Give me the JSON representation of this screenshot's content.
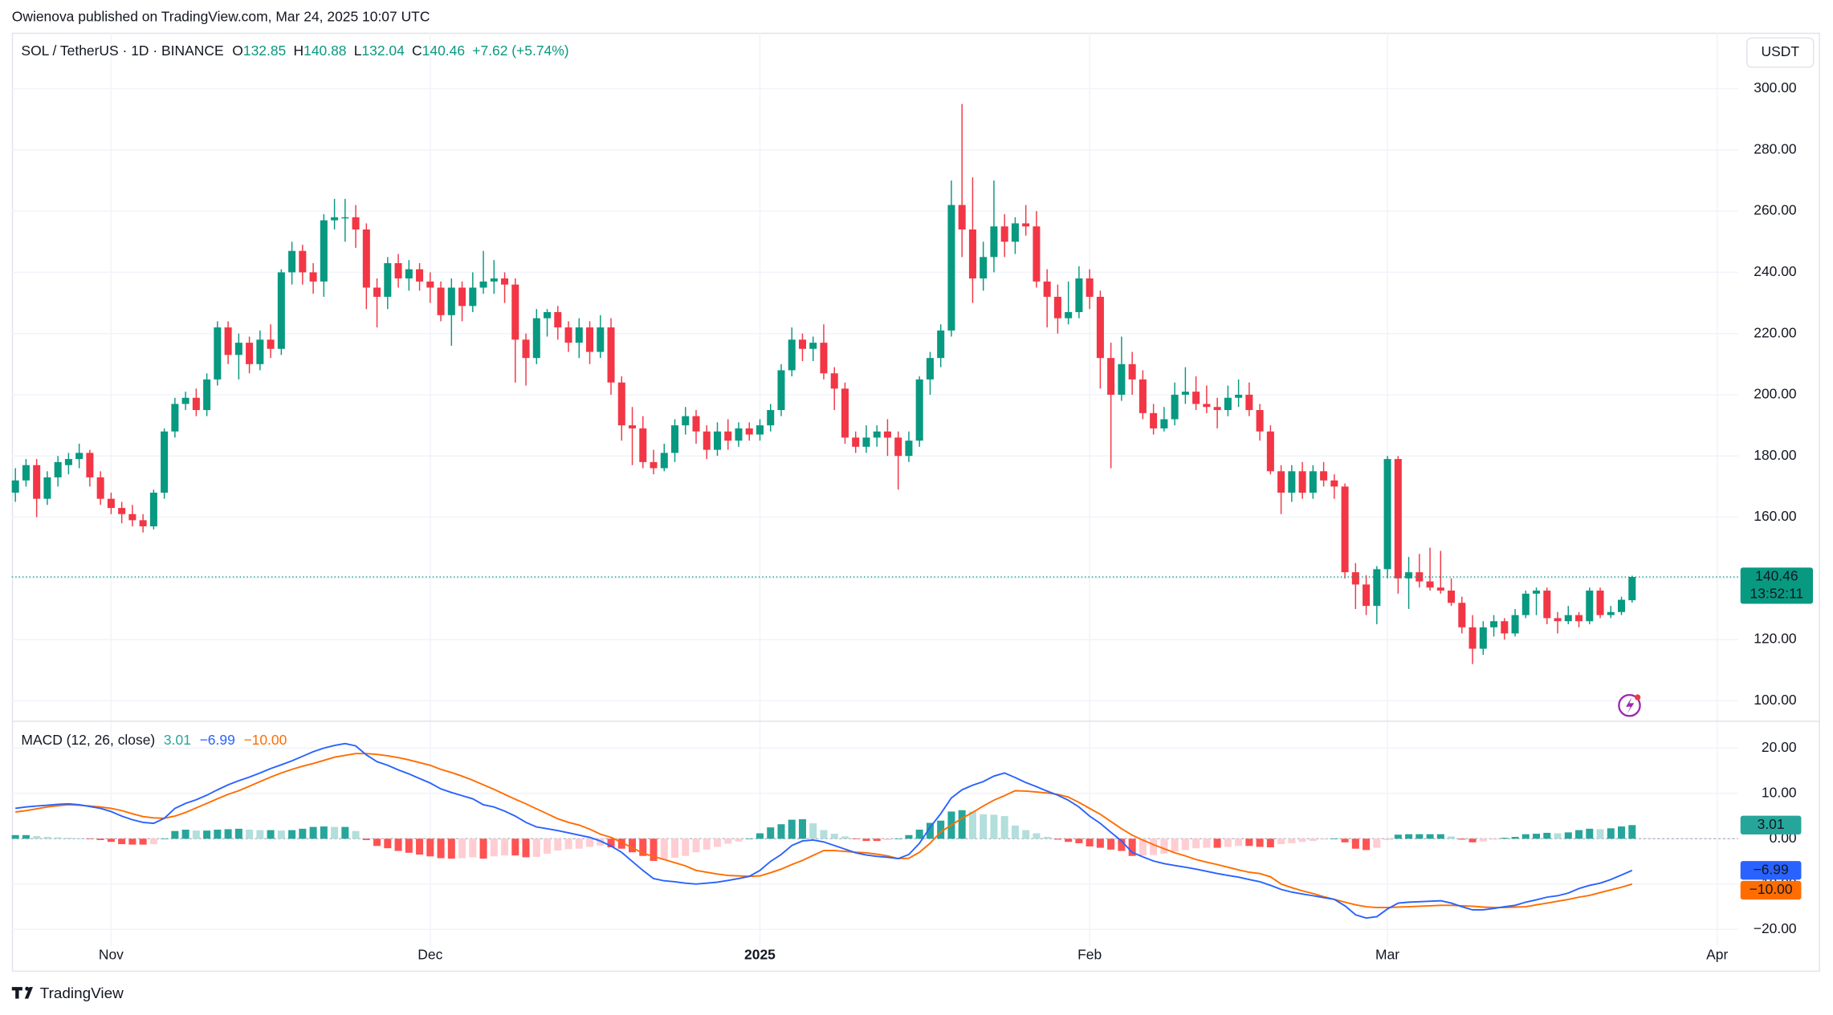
{
  "header": "Owienova published on TradingView.com, Mar 24, 2025 10:07 UTC",
  "footer": "TradingView",
  "chart_data": {
    "type": "candlestick",
    "symbol": "SOL / TetherUS · 1D · BINANCE",
    "open_label": "O",
    "high_label": "H",
    "low_label": "L",
    "close_label": "C",
    "change": "+7.62 (+5.74%)",
    "currency": "USDT",
    "countdown": "13:52:11",
    "up_color": "#089981",
    "down_color": "#f23645",
    "grid": true,
    "ohlc": [
      [
        168,
        176,
        165,
        172
      ],
      [
        172,
        179,
        170,
        177
      ],
      [
        177,
        179,
        160,
        166
      ],
      [
        166,
        175,
        164,
        173
      ],
      [
        173,
        180,
        170,
        178
      ],
      [
        177,
        181,
        174,
        179
      ],
      [
        179,
        184,
        176,
        181
      ],
      [
        181,
        182,
        170,
        173
      ],
      [
        173,
        175,
        164,
        166
      ],
      [
        166,
        168,
        161,
        163
      ],
      [
        163,
        165,
        158,
        161
      ],
      [
        161,
        164,
        157,
        159
      ],
      [
        159,
        161,
        155,
        157
      ],
      [
        157,
        169,
        156,
        168
      ],
      [
        168,
        189,
        166,
        188
      ],
      [
        188,
        199,
        186,
        197
      ],
      [
        197,
        201,
        195,
        199
      ],
      [
        199,
        202,
        193,
        195
      ],
      [
        195,
        207,
        193,
        205
      ],
      [
        205,
        224,
        203,
        222
      ],
      [
        222,
        224,
        210,
        213
      ],
      [
        213,
        220,
        205,
        217
      ],
      [
        217,
        219,
        207,
        210
      ],
      [
        210,
        221,
        208,
        218
      ],
      [
        218,
        223,
        212,
        215
      ],
      [
        215,
        241,
        213,
        240
      ],
      [
        240,
        250,
        236,
        247
      ],
      [
        247,
        249,
        236,
        240
      ],
      [
        240,
        243,
        233,
        237
      ],
      [
        237,
        259,
        232,
        257
      ],
      [
        257,
        264,
        254,
        258
      ],
      [
        258,
        264,
        250,
        258
      ],
      [
        258,
        262,
        248,
        254
      ],
      [
        254,
        256,
        228,
        235
      ],
      [
        235,
        238,
        222,
        232
      ],
      [
        232,
        245,
        228,
        243
      ],
      [
        243,
        246,
        235,
        238
      ],
      [
        238,
        244,
        234,
        241
      ],
      [
        241,
        243,
        234,
        237
      ],
      [
        237,
        240,
        230,
        235
      ],
      [
        235,
        237,
        224,
        226
      ],
      [
        226,
        238,
        216,
        235
      ],
      [
        235,
        237,
        224,
        229
      ],
      [
        229,
        240,
        227,
        235
      ],
      [
        235,
        247,
        233,
        237
      ],
      [
        237,
        244,
        233,
        238
      ],
      [
        238,
        240,
        230,
        236
      ],
      [
        236,
        238,
        204,
        218
      ],
      [
        218,
        220,
        203,
        212
      ],
      [
        212,
        228,
        210,
        225
      ],
      [
        225,
        228,
        219,
        227
      ],
      [
        227,
        229,
        218,
        222
      ],
      [
        222,
        224,
        214,
        217
      ],
      [
        217,
        225,
        212,
        222
      ],
      [
        222,
        224,
        210,
        214
      ],
      [
        214,
        226,
        212,
        222
      ],
      [
        222,
        225,
        200,
        204
      ],
      [
        204,
        206,
        185,
        190
      ],
      [
        190,
        196,
        177,
        189
      ],
      [
        189,
        193,
        176,
        178
      ],
      [
        178,
        182,
        174,
        176
      ],
      [
        176,
        184,
        175,
        181
      ],
      [
        181,
        192,
        178,
        190
      ],
      [
        190,
        196,
        187,
        193
      ],
      [
        193,
        195,
        184,
        188
      ],
      [
        188,
        190,
        179,
        182
      ],
      [
        182,
        191,
        180,
        188
      ],
      [
        188,
        192,
        182,
        185
      ],
      [
        185,
        191,
        183,
        189
      ],
      [
        189,
        191,
        185,
        187
      ],
      [
        187,
        192,
        185,
        190
      ],
      [
        190,
        197,
        188,
        195
      ],
      [
        195,
        210,
        193,
        208
      ],
      [
        208,
        222,
        206,
        218
      ],
      [
        218,
        220,
        211,
        215
      ],
      [
        215,
        219,
        211,
        217
      ],
      [
        217,
        223,
        205,
        207
      ],
      [
        207,
        209,
        195,
        202
      ],
      [
        202,
        204,
        184,
        186
      ],
      [
        186,
        188,
        181,
        183
      ],
      [
        183,
        190,
        181,
        186
      ],
      [
        186,
        190,
        183,
        188
      ],
      [
        188,
        192,
        180,
        186
      ],
      [
        186,
        188,
        169,
        180
      ],
      [
        180,
        188,
        178,
        185
      ],
      [
        185,
        206,
        183,
        205
      ],
      [
        205,
        214,
        200,
        212
      ],
      [
        212,
        223,
        209,
        221
      ],
      [
        221,
        270,
        219,
        262
      ],
      [
        262,
        295,
        245,
        254
      ],
      [
        254,
        271,
        230,
        238
      ],
      [
        238,
        250,
        234,
        245
      ],
      [
        245,
        270,
        240,
        255
      ],
      [
        255,
        259,
        245,
        250
      ],
      [
        250,
        258,
        246,
        256
      ],
      [
        256,
        262,
        252,
        255
      ],
      [
        255,
        260,
        235,
        237
      ],
      [
        237,
        241,
        222,
        232
      ],
      [
        232,
        236,
        220,
        225
      ],
      [
        225,
        237,
        223,
        227
      ],
      [
        227,
        242,
        225,
        238
      ],
      [
        238,
        241,
        228,
        232
      ],
      [
        232,
        234,
        202,
        212
      ],
      [
        212,
        217,
        176,
        200
      ],
      [
        200,
        219,
        198,
        210
      ],
      [
        210,
        214,
        200,
        205
      ],
      [
        205,
        208,
        192,
        194
      ],
      [
        194,
        197,
        187,
        189
      ],
      [
        189,
        196,
        188,
        192
      ],
      [
        192,
        204,
        190,
        200
      ],
      [
        200,
        209,
        197,
        201
      ],
      [
        201,
        206,
        195,
        197
      ],
      [
        197,
        203,
        194,
        196
      ],
      [
        196,
        199,
        189,
        195
      ],
      [
        195,
        203,
        193,
        199
      ],
      [
        199,
        205,
        196,
        200
      ],
      [
        200,
        204,
        193,
        195
      ],
      [
        195,
        197,
        185,
        188
      ],
      [
        188,
        190,
        174,
        175
      ],
      [
        175,
        177,
        161,
        168
      ],
      [
        168,
        177,
        165,
        175
      ],
      [
        175,
        178,
        166,
        168
      ],
      [
        168,
        177,
        166,
        175
      ],
      [
        175,
        178,
        170,
        172
      ],
      [
        172,
        174,
        166,
        170
      ],
      [
        170,
        171,
        140,
        142
      ],
      [
        142,
        145,
        130,
        138
      ],
      [
        138,
        141,
        128,
        131
      ],
      [
        131,
        144,
        125,
        143
      ],
      [
        143,
        180,
        140,
        179
      ],
      [
        179,
        180,
        135,
        140
      ],
      [
        140,
        147,
        130,
        142
      ],
      [
        142,
        148,
        137,
        139
      ],
      [
        139,
        150,
        136,
        137
      ],
      [
        137,
        149,
        135,
        136
      ],
      [
        136,
        140,
        131,
        132
      ],
      [
        132,
        134,
        122,
        124
      ],
      [
        124,
        128,
        112,
        117
      ],
      [
        117,
        126,
        115,
        124
      ],
      [
        124,
        128,
        121,
        126
      ],
      [
        126,
        127,
        120,
        122
      ],
      [
        122,
        130,
        121,
        128
      ],
      [
        128,
        136,
        127,
        135
      ],
      [
        135,
        137,
        128,
        136
      ],
      [
        136,
        137,
        125,
        127
      ],
      [
        127,
        129,
        122,
        126
      ],
      [
        126,
        131,
        125,
        128
      ],
      [
        128,
        129,
        124,
        126
      ],
      [
        126,
        137,
        125,
        136
      ],
      [
        136,
        137,
        127,
        128
      ],
      [
        128,
        131,
        127,
        129
      ],
      [
        129,
        134,
        128,
        133
      ],
      [
        132.85,
        140.88,
        132.04,
        140.46
      ]
    ],
    "xlim": [
      -0.33,
      161.97
    ],
    "xticks": [
      {
        "value": 9,
        "label": "Nov"
      },
      {
        "value": 39,
        "label": "Dec"
      },
      {
        "value": 70,
        "label": "2025"
      },
      {
        "value": 101,
        "label": "Feb"
      },
      {
        "value": 129,
        "label": "Mar"
      },
      {
        "value": 160,
        "label": "Apr"
      }
    ],
    "ylim": [
      93.5,
      318.3
    ],
    "yticks": [
      {
        "value": 100,
        "label": "100.00"
      },
      {
        "value": 120,
        "label": "120.00"
      },
      {
        "value": 140,
        "label": "140.00"
      },
      {
        "value": 160,
        "label": "160.00"
      },
      {
        "value": 180,
        "label": "180.00"
      },
      {
        "value": 200,
        "label": "200.00"
      },
      {
        "value": 220,
        "label": "220.00"
      },
      {
        "value": 240,
        "label": "240.00"
      },
      {
        "value": 260,
        "label": "260.00"
      },
      {
        "value": 280,
        "label": "280.00"
      },
      {
        "value": 300,
        "label": "300.00"
      }
    ],
    "macd": {
      "title": "MACD (12, 26, close)",
      "macd_color": "#2962ff",
      "signal_color": "#ff6d00",
      "hist_colors": [
        "#26a69a",
        "#b2dfdb",
        "#ff5252",
        "#ffcdd2"
      ],
      "macd_label": "−6.99",
      "signal_label": "−10.00",
      "macd": [
        6.7,
        7.0,
        7.2,
        7.4,
        7.6,
        7.7,
        7.5,
        7.1,
        6.7,
        6.0,
        5.0,
        4.2,
        3.6,
        3.4,
        4.5,
        6.7,
        7.8,
        8.6,
        9.6,
        10.8,
        11.9,
        12.8,
        13.6,
        14.5,
        15.5,
        16.3,
        17.2,
        18.2,
        19.2,
        20.0,
        20.6,
        21.0,
        20.5,
        18.5,
        17.0,
        16.2,
        15.2,
        14.3,
        13.3,
        12.3,
        11.0,
        10.2,
        9.5,
        8.8,
        7.5,
        7.0,
        6.1,
        5.0,
        3.6,
        2.6,
        2.2,
        1.8,
        1.3,
        0.8,
        0.3,
        -0.5,
        -1.6,
        -3.0,
        -5.0,
        -7.0,
        -8.8,
        -9.3,
        -9.5,
        -9.8,
        -10.0,
        -9.8,
        -9.6,
        -9.2,
        -8.8,
        -8.3,
        -7.0,
        -5.0,
        -3.5,
        -1.5,
        -0.5,
        -0.3,
        -0.7,
        -1.5,
        -2.3,
        -3.1,
        -3.6,
        -3.9,
        -4.1,
        -4.4,
        -3.5,
        -1.0,
        2.5,
        5.5,
        9.0,
        10.8,
        11.8,
        12.6,
        13.8,
        14.5,
        13.5,
        12.4,
        11.5,
        10.5,
        9.6,
        8.5,
        7.0,
        5.0,
        3.4,
        1.4,
        -0.5,
        -3.0,
        -4.0,
        -4.9,
        -5.5,
        -5.9,
        -6.3,
        -6.7,
        -7.2,
        -7.7,
        -8.1,
        -8.5,
        -9.0,
        -9.5,
        -10.3,
        -11.2,
        -11.8,
        -12.2,
        -12.6,
        -13.0,
        -13.4,
        -14.8,
        -16.8,
        -17.5,
        -17.2,
        -15.5,
        -14.2,
        -14.0,
        -13.9,
        -13.8,
        -13.7,
        -14.2,
        -15.0,
        -15.7,
        -15.7,
        -15.4,
        -15.0,
        -14.7,
        -14.0,
        -13.5,
        -12.9,
        -12.6,
        -12.0,
        -11.0,
        -10.3,
        -9.8,
        -9.0,
        -8.0,
        -6.99
      ],
      "signal": [
        5.9,
        6.2,
        6.6,
        7.0,
        7.3,
        7.5,
        7.4,
        7.2,
        7.0,
        6.7,
        6.2,
        5.5,
        4.9,
        4.6,
        4.5,
        5.0,
        5.8,
        6.8,
        7.8,
        8.8,
        9.8,
        10.6,
        11.6,
        12.6,
        13.6,
        14.5,
        15.3,
        16.0,
        16.6,
        17.3,
        18.0,
        18.4,
        18.8,
        18.8,
        18.6,
        18.3,
        17.9,
        17.4,
        16.8,
        16.2,
        15.3,
        14.6,
        13.8,
        12.9,
        11.9,
        10.9,
        9.8,
        8.7,
        7.7,
        6.6,
        5.5,
        4.4,
        3.6,
        3.0,
        2.1,
        1.0,
        0.3,
        -0.8,
        -2.0,
        -3.2,
        -3.9,
        -4.6,
        -5.3,
        -6.0,
        -7.0,
        -7.4,
        -7.8,
        -8.1,
        -8.2,
        -8.3,
        -8.2,
        -7.5,
        -6.7,
        -5.7,
        -4.8,
        -3.7,
        -2.6,
        -2.6,
        -2.8,
        -3.0,
        -3.1,
        -3.4,
        -3.8,
        -4.4,
        -4.3,
        -3.0,
        -1.0,
        1.5,
        3.0,
        4.5,
        5.8,
        7.2,
        8.5,
        9.5,
        10.6,
        10.5,
        10.3,
        10.1,
        9.8,
        9.2,
        8.0,
        6.7,
        5.4,
        3.8,
        2.2,
        0.8,
        -0.3,
        -1.3,
        -2.2,
        -3.1,
        -3.8,
        -4.6,
        -5.2,
        -5.7,
        -6.3,
        -6.9,
        -7.4,
        -7.7,
        -8.4,
        -10.0,
        -10.8,
        -11.5,
        -12.1,
        -12.8,
        -13.4,
        -14.0,
        -14.6,
        -15.0,
        -15.2,
        -15.2,
        -15.1,
        -15.0,
        -14.9,
        -14.8,
        -14.7,
        -14.7,
        -14.8,
        -14.9,
        -15.1,
        -15.2,
        -15.2,
        -15.1,
        -15.0,
        -14.6,
        -14.2,
        -13.8,
        -13.4,
        -12.9,
        -12.5,
        -11.9,
        -11.3,
        -10.7,
        -10.0
      ],
      "histogram": [
        0.8,
        0.8,
        0.6,
        0.4,
        0.3,
        0.2,
        0.1,
        -0.1,
        -0.3,
        -0.7,
        -1.2,
        -1.3,
        -1.3,
        -1.2,
        0.0,
        1.7,
        2.0,
        1.8,
        1.8,
        2.0,
        2.1,
        2.2,
        2.0,
        1.9,
        1.9,
        1.8,
        1.9,
        2.2,
        2.6,
        2.7,
        2.6,
        2.6,
        1.7,
        -0.3,
        -1.6,
        -2.1,
        -2.7,
        -3.1,
        -3.5,
        -3.9,
        -4.3,
        -4.4,
        -4.3,
        -4.1,
        -4.4,
        -3.9,
        -3.7,
        -3.7,
        -4.1,
        -4.0,
        -3.3,
        -2.6,
        -2.3,
        -2.2,
        -1.8,
        -1.5,
        -1.9,
        -2.2,
        -3.0,
        -3.8,
        -4.9,
        -4.7,
        -4.2,
        -3.8,
        -3.0,
        -2.4,
        -1.8,
        -1.1,
        -0.6,
        0.0,
        1.2,
        2.5,
        3.2,
        4.2,
        4.3,
        3.4,
        1.9,
        1.1,
        0.5,
        -0.1,
        -0.5,
        -0.5,
        -0.3,
        0.0,
        0.8,
        2.0,
        3.5,
        4.0,
        6.0,
        6.3,
        6.0,
        5.4,
        5.3,
        5.0,
        2.9,
        1.9,
        1.2,
        0.4,
        -0.2,
        -0.7,
        -1.0,
        -1.7,
        -2.0,
        -2.4,
        -2.7,
        -3.8,
        -3.7,
        -3.6,
        -3.3,
        -2.8,
        -2.5,
        -2.1,
        -2.0,
        -2.0,
        -1.8,
        -1.6,
        -1.6,
        -1.8,
        -1.9,
        -1.2,
        -1.0,
        -0.7,
        -0.5,
        -0.2,
        0.0,
        -0.8,
        -2.2,
        -2.5,
        -2.0,
        -0.3,
        0.9,
        1.0,
        1.0,
        1.0,
        1.0,
        0.5,
        -0.2,
        -0.8,
        -0.6,
        -0.2,
        0.2,
        0.4,
        1.0,
        1.1,
        1.3,
        1.2,
        1.4,
        1.9,
        2.2,
        2.1,
        2.3,
        2.7,
        3.01
      ],
      "ylim": [
        -23.7,
        25.8
      ],
      "yticks": [
        {
          "value": 20,
          "label": "20.00"
        },
        {
          "value": 10,
          "label": "10.00"
        },
        {
          "value": 0,
          "label": "0.00"
        },
        {
          "value": -10,
          "label": "−10.00"
        },
        {
          "value": -20,
          "label": "−20.00"
        }
      ]
    }
  }
}
